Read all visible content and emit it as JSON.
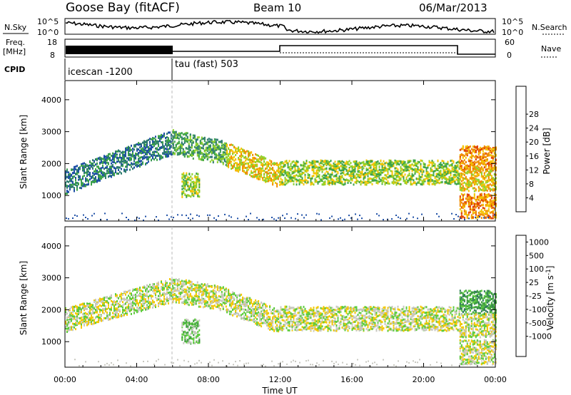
{
  "header": {
    "station": "Goose Bay (fitACF)",
    "beam": "Beam 10",
    "date": "06/Mar/2013"
  },
  "strips": {
    "nsky": {
      "label": "N.Sky",
      "ticks_left": [
        "10^5",
        "10^0"
      ],
      "ticks_right": [
        "10^5",
        "10^0"
      ],
      "right_label": "N.Search"
    },
    "freq": {
      "label_line1": "Freq.",
      "label_line2": "[MHz]",
      "ticks_left": [
        "18",
        "8"
      ],
      "ticks_right": [
        "60",
        "0"
      ],
      "right_label": "Nave"
    },
    "cpid": {
      "label": "CPID",
      "segments": [
        {
          "text": "icescan -1200"
        },
        {
          "text": "tau (fast) 503"
        }
      ]
    }
  },
  "chart_data": [
    {
      "type": "heatmap",
      "ylabel": "Slant Range [km]",
      "xlabel": "Time UT",
      "xlim_hours": [
        0,
        24
      ],
      "ylim_km": [
        200,
        4600
      ],
      "y_ticks": [
        1000,
        2000,
        3000,
        4000
      ],
      "x_tick_labels": [
        "00:00",
        "04:00",
        "08:00",
        "12:00",
        "16:00",
        "20:00",
        "00:00"
      ],
      "colorbar": {
        "label": "Power [dB]",
        "ticks": [
          "4",
          "8",
          "12",
          "16",
          "20",
          "24",
          "28"
        ],
        "colors": [
          "#0000ff",
          "#1e4fa6",
          "#2d7a70",
          "#3ca348",
          "#8fd12a",
          "#f4c400",
          "#f08c00",
          "#e04000",
          "#ff0000"
        ]
      },
      "echo_bands": [
        {
          "t0": 0.0,
          "t1": 6.0,
          "km_start": 1450,
          "km_end": 2700,
          "level": 2
        },
        {
          "t0": 6.0,
          "t1": 9.0,
          "km_start": 2700,
          "km_end": 2350,
          "level": 3
        },
        {
          "t0": 9.0,
          "t1": 12.0,
          "km_start": 2300,
          "km_end": 1650,
          "level": 5
        },
        {
          "t0": 12.0,
          "t1": 22.0,
          "km_start": 1750,
          "km_end": 1750,
          "level": 4
        },
        {
          "t0": 22.0,
          "t1": 24.0,
          "km_start": 2200,
          "km_end": 2200,
          "level": 6
        },
        {
          "t0": 22.0,
          "t1": 24.0,
          "km_start": 1550,
          "km_end": 1550,
          "level": 5
        },
        {
          "t0": 22.0,
          "t1": 24.0,
          "km_start": 700,
          "km_end": 700,
          "level": 6
        },
        {
          "t0": 6.5,
          "t1": 7.5,
          "km_start": 1350,
          "km_end": 1350,
          "level": 4
        }
      ]
    },
    {
      "type": "heatmap",
      "ylabel": "Slant Range [km]",
      "xlabel": "Time UT",
      "xlim_hours": [
        0,
        24
      ],
      "ylim_km": [
        200,
        4600
      ],
      "y_ticks": [
        1000,
        2000,
        3000,
        4000
      ],
      "x_tick_labels": [
        "00:00",
        "04:00",
        "08:00",
        "12:00",
        "16:00",
        "20:00",
        "00:00"
      ],
      "colorbar": {
        "label": "Velocity [m s^-1]",
        "ticks": [
          "1000",
          "500",
          "100",
          "25",
          "-25",
          "-100",
          "-500",
          "-1000"
        ],
        "colors": [
          "#1034c8",
          "#2f7a5a",
          "#3c9e3c",
          "#5ccc3c",
          "#c8c8c0",
          "#f4c800",
          "#f08c00",
          "#e04000",
          "#ff0000"
        ]
      },
      "echo_bands": [
        {
          "t0": 0.0,
          "t1": 6.0,
          "km_start": 1700,
          "km_end": 2650,
          "level": 4
        },
        {
          "t0": 6.0,
          "t1": 9.0,
          "km_start": 2650,
          "km_end": 2350,
          "level": 4
        },
        {
          "t0": 9.0,
          "t1": 12.0,
          "km_start": 2300,
          "km_end": 1650,
          "level": 4
        },
        {
          "t0": 12.0,
          "t1": 22.0,
          "km_start": 1750,
          "km_end": 1750,
          "level": 4
        },
        {
          "t0": 22.0,
          "t1": 24.0,
          "km_start": 2250,
          "km_end": 2250,
          "level": 2
        },
        {
          "t0": 22.0,
          "t1": 24.0,
          "km_start": 1550,
          "km_end": 1550,
          "level": 4
        },
        {
          "t0": 22.0,
          "t1": 24.0,
          "km_start": 700,
          "km_end": 700,
          "level": 4
        },
        {
          "t0": 6.5,
          "t1": 7.5,
          "km_start": 1350,
          "km_end": 1350,
          "level": 3
        }
      ]
    }
  ]
}
